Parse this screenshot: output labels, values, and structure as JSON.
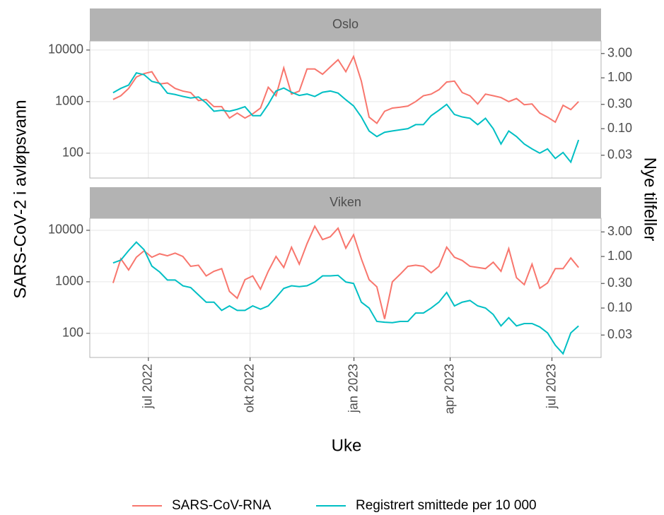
{
  "chart_data": {
    "type": "line",
    "xlabel": "Uke",
    "ylabel": "SARS-CoV-2 i avløpsvann",
    "y2label": "Nye tilfeller",
    "log_scale": true,
    "grid": true,
    "legend": "bottom",
    "x": [
      0,
      1,
      2,
      3,
      4,
      5,
      6,
      7,
      8,
      9,
      10,
      11,
      12,
      13,
      14,
      15,
      16,
      17,
      18,
      19,
      20,
      21,
      22,
      23,
      24,
      25,
      26,
      27,
      28,
      29,
      30,
      31,
      32,
      33,
      34,
      35,
      36,
      37,
      38,
      39,
      40,
      41,
      42,
      43,
      44,
      45,
      46,
      47,
      48,
      49,
      50,
      51,
      52,
      53,
      54,
      55,
      56,
      57,
      58,
      59,
      60
    ],
    "xlim": [
      -3.0,
      62.9
    ],
    "xticks": [
      {
        "value": 4.55,
        "label": "jul 2022"
      },
      {
        "value": 17.66,
        "label": "okt 2022"
      },
      {
        "value": 31.05,
        "label": "jan 2023"
      },
      {
        "value": 43.45,
        "label": "apr 2023"
      },
      {
        "value": 56.57,
        "label": "jul 2023"
      }
    ],
    "series": [
      {
        "name": "SARS-CoV-RNA",
        "color": "#f8766d",
        "axis": "y"
      },
      {
        "name": "Registrert smittede per 10 000",
        "color": "#00bfc4",
        "axis": "y2"
      }
    ],
    "facets": [
      {
        "title": "Oslo",
        "ylim": [
          33,
          15000
        ],
        "yticks": [
          100,
          1000,
          10000
        ],
        "y2lim": [
          0.0107,
          5.3
        ],
        "y2ticks": [
          {
            "value": 3,
            "label": "3.00"
          },
          {
            "value": 1,
            "label": "1.00"
          },
          {
            "value": 0.3,
            "label": "0.30"
          },
          {
            "value": 0.1,
            "label": "0.10"
          },
          {
            "value": 0.03,
            "label": "0.03"
          }
        ],
        "series": [
          {
            "values": [
              1100,
              1300,
              1800,
              3000,
              3500,
              3800,
              2200,
              2300,
              1800,
              1600,
              1500,
              1050,
              1100,
              800,
              800,
              480,
              600,
              480,
              580,
              750,
              1900,
              1300,
              4500,
              1400,
              1600,
              4300,
              4300,
              3400,
              4700,
              6500,
              3800,
              7500,
              2500,
              500,
              380,
              650,
              750,
              780,
              820,
              1000,
              1300,
              1400,
              1700,
              2400,
              2500,
              1500,
              1300,
              900,
              1400,
              1300,
              1200,
              1000,
              1150,
              870,
              900,
              600,
              500,
              400,
              850,
              700,
              1000
            ]
          },
          {
            "values": [
              0.51,
              0.62,
              0.72,
              1.25,
              1.15,
              0.85,
              0.78,
              0.5,
              0.47,
              0.43,
              0.4,
              0.42,
              0.32,
              0.22,
              0.23,
              0.22,
              0.24,
              0.27,
              0.18,
              0.18,
              0.3,
              0.55,
              0.63,
              0.52,
              0.45,
              0.48,
              0.43,
              0.52,
              0.55,
              0.5,
              0.37,
              0.28,
              0.17,
              0.09,
              0.07,
              0.085,
              0.09,
              0.095,
              0.1,
              0.12,
              0.12,
              0.18,
              0.23,
              0.3,
              0.19,
              0.17,
              0.16,
              0.12,
              0.16,
              0.1,
              0.05,
              0.09,
              0.07,
              0.05,
              0.04,
              0.033,
              0.04,
              0.026,
              0.034,
              0.022,
              0.06
            ]
          }
        ]
      },
      {
        "title": "Viken",
        "ylim": [
          34,
          17100
        ],
        "yticks": [
          100,
          1000,
          10000
        ],
        "y2lim": [
          0.011,
          5.5
        ],
        "y2ticks": [
          {
            "value": 3,
            "label": "3.00"
          },
          {
            "value": 1,
            "label": "1.00"
          },
          {
            "value": 0.3,
            "label": "0.30"
          },
          {
            "value": 0.1,
            "label": "0.10"
          },
          {
            "value": 0.03,
            "label": "0.03"
          }
        ],
        "series": [
          {
            "values": [
              950,
              2800,
              1700,
              3000,
              4000,
              3000,
              3500,
              3200,
              3600,
              3100,
              2000,
              2100,
              1300,
              1600,
              1800,
              650,
              480,
              1100,
              1300,
              720,
              1600,
              3100,
              1900,
              4700,
              2200,
              5500,
              12000,
              6600,
              7500,
              11000,
              4500,
              8200,
              2800,
              1100,
              800,
              190,
              1000,
              1400,
              2000,
              2100,
              2000,
              1500,
              2000,
              4700,
              3000,
              2600,
              2000,
              1900,
              1800,
              2400,
              1600,
              4400,
              1200,
              880,
              2200,
              750,
              950,
              1800,
              1800,
              2900,
              1900
            ]
          },
          {
            "values": [
              0.75,
              0.85,
              1.3,
              1.9,
              1.35,
              0.65,
              0.5,
              0.35,
              0.35,
              0.27,
              0.25,
              0.18,
              0.13,
              0.13,
              0.09,
              0.11,
              0.09,
              0.09,
              0.11,
              0.095,
              0.11,
              0.16,
              0.24,
              0.27,
              0.26,
              0.27,
              0.32,
              0.42,
              0.42,
              0.43,
              0.32,
              0.3,
              0.13,
              0.1,
              0.055,
              0.053,
              0.052,
              0.055,
              0.055,
              0.08,
              0.08,
              0.1,
              0.13,
              0.2,
              0.11,
              0.13,
              0.14,
              0.11,
              0.1,
              0.075,
              0.045,
              0.065,
              0.045,
              0.05,
              0.05,
              0.043,
              0.033,
              0.019,
              0.013,
              0.033,
              0.045
            ]
          }
        ]
      }
    ]
  }
}
